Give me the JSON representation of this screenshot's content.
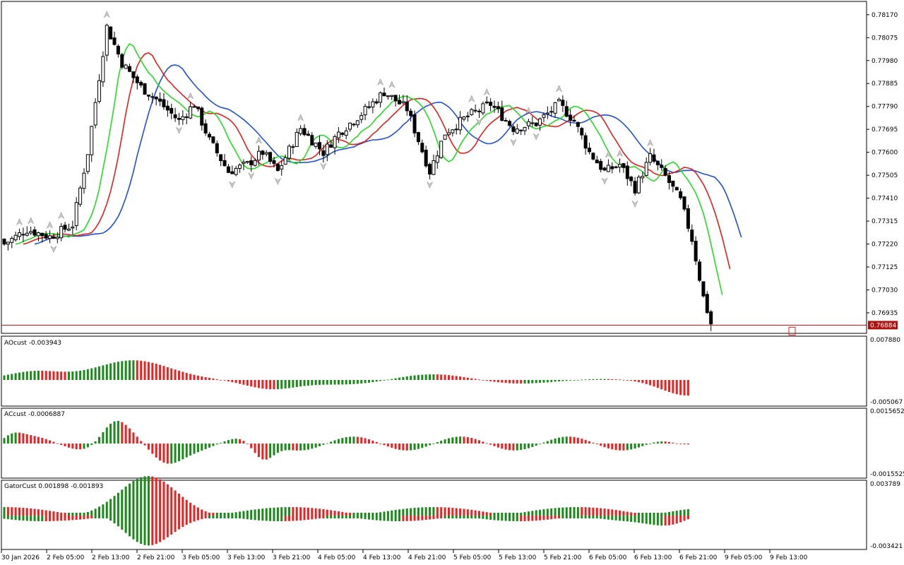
{
  "main_chart": {
    "price_ticks": [
      "0.78170",
      "0.78075",
      "0.77980",
      "0.77885",
      "0.77790",
      "0.77695",
      "0.77600",
      "0.77505",
      "0.77410",
      "0.77315",
      "0.77220",
      "0.77125",
      "0.77030",
      "0.76935"
    ],
    "price_min": 0.7685,
    "price_max": 0.7819,
    "current_price": "0.76884",
    "current_price_value": 0.76884,
    "colors": {
      "bull_body": "#ffffff",
      "bear_body": "#000000",
      "jaw": "#1f4fd6",
      "teeth": "#e0201a",
      "lips": "#22dd22",
      "price_line": "#b01010"
    }
  },
  "indicators": [
    {
      "name": "AOcust",
      "label": "AOcust -0.003943",
      "tick_top": "0.007880",
      "tick_bottom": "-0.005067"
    },
    {
      "name": "ACcust",
      "label": "ACcust -0.0006887",
      "tick_top": "0.0015652",
      "tick_bottom": "-0.0015525"
    },
    {
      "name": "GatorCust",
      "label": "GatorCust 0.001898 -0.001893",
      "tick_top": "0.003789",
      "tick_bottom": "-0.003421"
    }
  ],
  "time_axis": [
    "30 Jan 2026",
    "2 Feb 05:00",
    "2 Feb 13:00",
    "2 Feb 21:00",
    "3 Feb 05:00",
    "3 Feb 13:00",
    "3 Feb 21:00",
    "4 Feb 05:00",
    "4 Feb 13:00",
    "4 Feb 21:00",
    "5 Feb 05:00",
    "5 Feb 13:00",
    "5 Feb 21:00",
    "6 Feb 05:00",
    "6 Feb 13:00",
    "6 Feb 21:00",
    "9 Feb 05:00",
    "9 Feb 13:00"
  ],
  "histogram_colors": {
    "up": "#1a8a1a",
    "down": "#ee2020"
  }
}
